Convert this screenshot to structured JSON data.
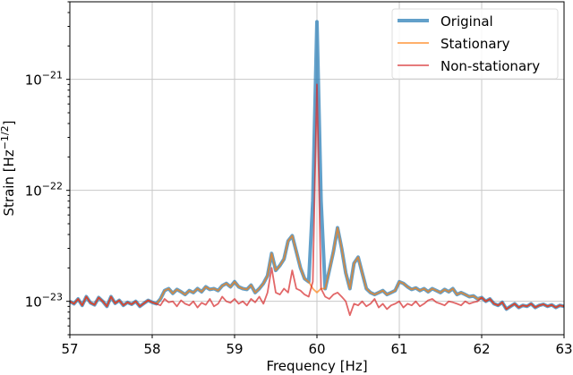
{
  "chart_data": {
    "type": "line",
    "xlabel": "Frequency [Hz]",
    "ylabel": {
      "main": "Strain [Hz",
      "sup": "−1/2",
      "end": "]"
    },
    "xlim": [
      57,
      63
    ],
    "ylim": [
      5e-24,
      5e-21
    ],
    "yscale": "log",
    "grid": true,
    "legend_position": "top-right",
    "xticks": [
      "57",
      "58",
      "59",
      "60",
      "61",
      "62",
      "63"
    ],
    "yticks": [
      {
        "value": 1e-21,
        "base": "10",
        "exp": "−21"
      },
      {
        "value": 1e-22,
        "base": "10",
        "exp": "−22"
      },
      {
        "value": 1e-23,
        "base": "10",
        "exp": "−23"
      }
    ],
    "x_start": 57,
    "x_step": 0.05,
    "value_unit": 1e-23,
    "series": [
      {
        "name": "Original",
        "color": "#1f77b4",
        "values": [
          1.0,
          0.95,
          1.05,
          0.92,
          1.1,
          0.97,
          0.93,
          1.08,
          1.0,
          0.9,
          1.1,
          0.96,
          1.02,
          0.92,
          0.98,
          0.94,
          1.0,
          0.9,
          0.96,
          1.02,
          0.98,
          0.95,
          1.05,
          1.25,
          1.3,
          1.18,
          1.28,
          1.22,
          1.15,
          1.25,
          1.2,
          1.3,
          1.22,
          1.35,
          1.28,
          1.3,
          1.25,
          1.38,
          1.45,
          1.35,
          1.5,
          1.35,
          1.3,
          1.28,
          1.4,
          1.2,
          1.3,
          1.45,
          1.7,
          2.7,
          1.9,
          2.1,
          2.4,
          3.5,
          3.9,
          2.8,
          2.0,
          1.6,
          1.5,
          8.0,
          330,
          8.0,
          1.3,
          1.9,
          2.8,
          4.6,
          3.0,
          1.8,
          1.3,
          2.2,
          2.5,
          1.8,
          1.3,
          1.2,
          1.15,
          1.2,
          1.25,
          1.15,
          1.2,
          1.25,
          1.5,
          1.45,
          1.35,
          1.28,
          1.32,
          1.25,
          1.3,
          1.22,
          1.3,
          1.25,
          1.2,
          1.28,
          1.22,
          1.3,
          1.15,
          1.2,
          1.15,
          1.1,
          1.12,
          1.05,
          1.08,
          1.0,
          1.05,
          0.95,
          0.92,
          0.98,
          0.85,
          0.9,
          0.95,
          0.88,
          0.92,
          0.9,
          0.95,
          0.88,
          0.92,
          0.94,
          0.9,
          0.93,
          0.88,
          0.92,
          0.9
        ]
      },
      {
        "name": "Stationary",
        "color": "#ff7f0e",
        "values": [
          1.0,
          0.95,
          1.05,
          0.92,
          1.1,
          0.97,
          0.93,
          1.08,
          1.0,
          0.9,
          1.1,
          0.96,
          1.02,
          0.92,
          0.98,
          0.94,
          1.0,
          0.9,
          0.96,
          1.02,
          0.98,
          0.95,
          1.05,
          1.25,
          1.3,
          1.18,
          1.28,
          1.22,
          1.15,
          1.25,
          1.2,
          1.3,
          1.22,
          1.35,
          1.28,
          1.3,
          1.25,
          1.38,
          1.45,
          1.35,
          1.5,
          1.35,
          1.3,
          1.28,
          1.4,
          1.2,
          1.3,
          1.45,
          1.7,
          2.7,
          1.9,
          2.1,
          2.4,
          3.5,
          3.9,
          2.8,
          2.0,
          1.6,
          1.5,
          1.3,
          1.2,
          1.3,
          1.3,
          1.9,
          2.8,
          4.6,
          3.0,
          1.8,
          1.3,
          2.2,
          2.5,
          1.8,
          1.3,
          1.2,
          1.15,
          1.2,
          1.25,
          1.15,
          1.2,
          1.25,
          1.5,
          1.45,
          1.35,
          1.28,
          1.32,
          1.25,
          1.3,
          1.22,
          1.3,
          1.25,
          1.2,
          1.28,
          1.22,
          1.3,
          1.15,
          1.2,
          1.15,
          1.1,
          1.12,
          1.05,
          1.08,
          1.0,
          1.05,
          0.95,
          0.92,
          0.98,
          0.85,
          0.9,
          0.95,
          0.88,
          0.92,
          0.9,
          0.95,
          0.88,
          0.92,
          0.94,
          0.9,
          0.93,
          0.88,
          0.92,
          0.9
        ]
      },
      {
        "name": "Non-stationary",
        "color": "#d62728",
        "values": [
          1.0,
          0.95,
          1.05,
          0.92,
          1.1,
          0.97,
          0.93,
          1.08,
          1.0,
          0.9,
          1.1,
          0.96,
          1.02,
          0.92,
          0.98,
          0.94,
          1.0,
          0.9,
          0.96,
          1.02,
          0.98,
          0.95,
          0.92,
          1.05,
          0.98,
          1.0,
          0.9,
          1.02,
          0.95,
          0.92,
          1.0,
          0.88,
          0.97,
          0.93,
          1.05,
          0.9,
          0.95,
          1.1,
          1.0,
          0.97,
          1.05,
          0.95,
          1.0,
          0.92,
          1.05,
          0.98,
          1.1,
          0.95,
          1.2,
          2.0,
          1.2,
          1.15,
          1.3,
          1.2,
          1.9,
          1.3,
          1.25,
          1.15,
          1.1,
          1.5,
          90,
          1.3,
          1.1,
          1.05,
          1.15,
          1.2,
          1.1,
          1.0,
          0.75,
          0.95,
          0.92,
          1.0,
          0.9,
          0.95,
          1.05,
          0.88,
          0.95,
          0.85,
          0.92,
          0.95,
          1.0,
          0.88,
          0.95,
          0.92,
          1.0,
          0.9,
          0.95,
          1.02,
          1.05,
          0.98,
          0.95,
          0.92,
          1.0,
          0.98,
          0.95,
          0.92,
          1.0,
          0.95,
          0.98,
          1.0,
          1.08,
          1.0,
          1.05,
          0.95,
          0.92,
          0.98,
          0.85,
          0.9,
          0.95,
          0.88,
          0.92,
          0.9,
          0.95,
          0.88,
          0.92,
          0.94,
          0.9,
          0.93,
          0.88,
          0.92,
          0.9
        ]
      }
    ]
  }
}
